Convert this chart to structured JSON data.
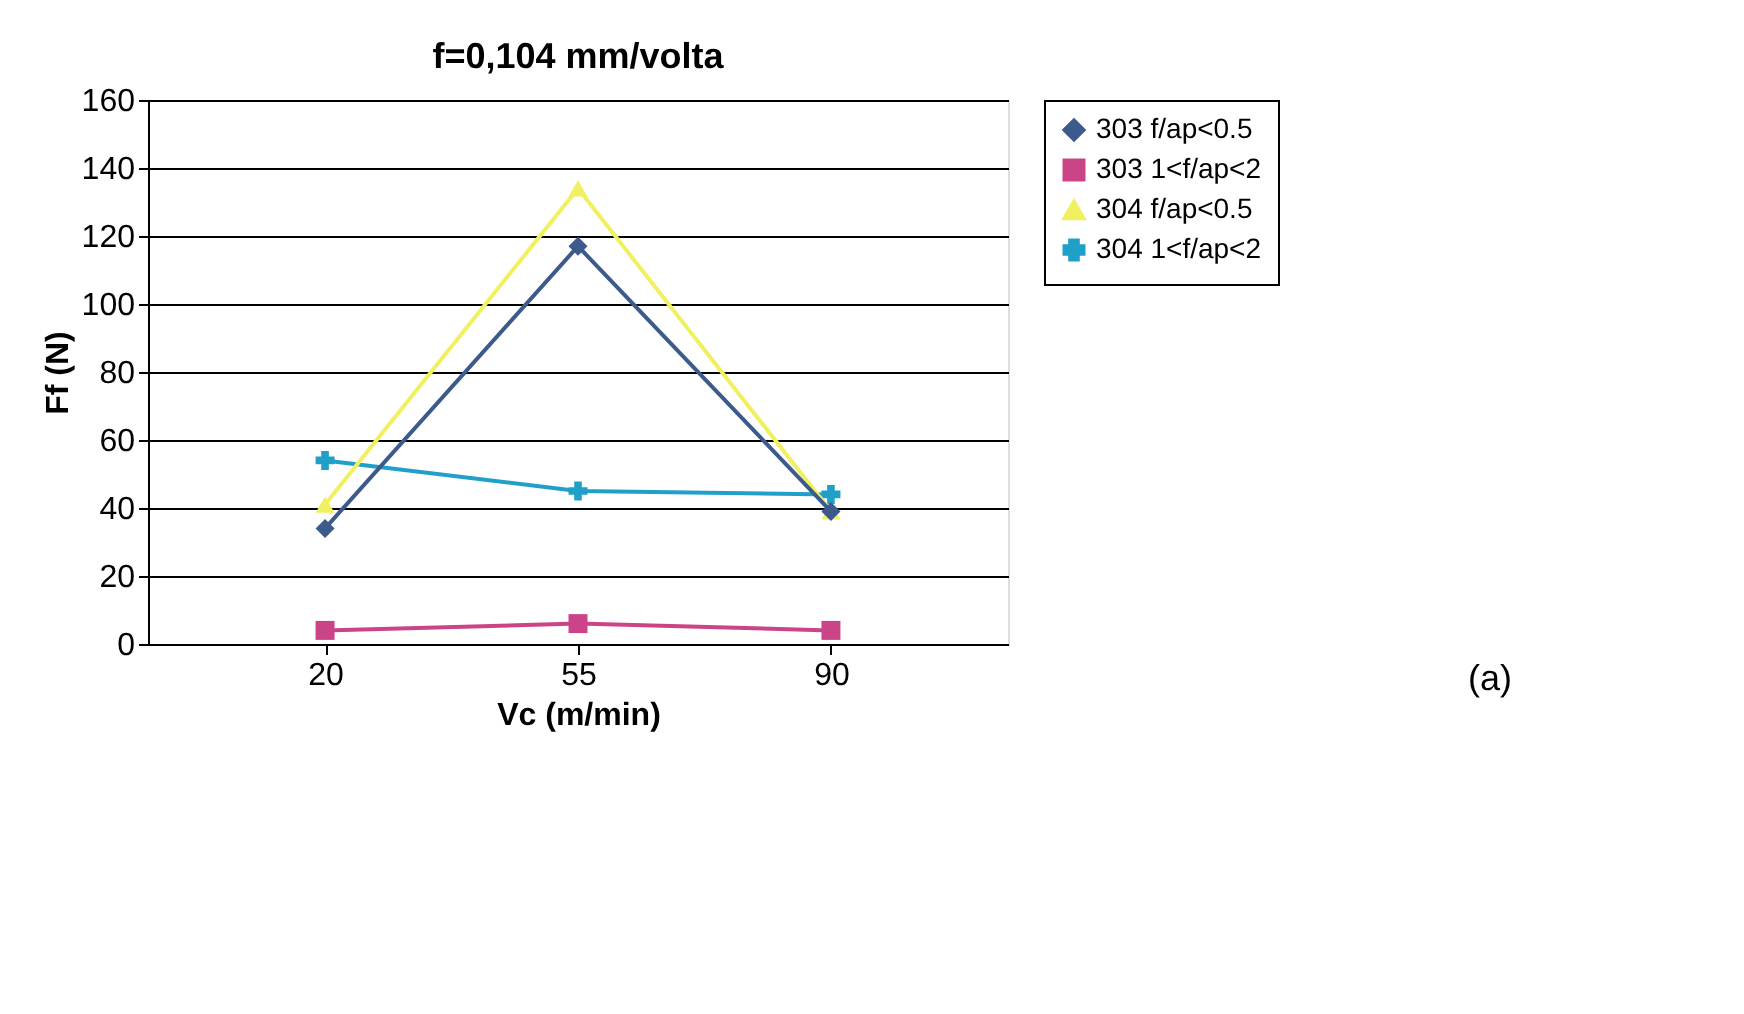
{
  "chart_data": {
    "type": "line",
    "title": "f=0,104 mm/volta",
    "xlabel": "Vc (m/min)",
    "ylabel": "Ff (N)",
    "categories": [
      "20",
      "55",
      "90"
    ],
    "series": [
      {
        "name": "303 f/ap<0.5",
        "color": "#3c5a8c",
        "marker": "diamond",
        "values": [
          34,
          117,
          39
        ]
      },
      {
        "name": "303 1<f/ap<2",
        "color": "#cc4488",
        "marker": "square",
        "values": [
          4,
          6,
          4
        ]
      },
      {
        "name": "304 f/ap<0.5",
        "color": "#f0f060",
        "marker": "triangle",
        "values": [
          41,
          134,
          39
        ]
      },
      {
        "name": "304 1<f/ap<2",
        "color": "#20a0c8",
        "marker": "cross",
        "values": [
          54,
          45,
          44
        ]
      }
    ],
    "ylim": [
      0,
      160
    ],
    "yticks": [
      0,
      20,
      40,
      60,
      80,
      100,
      120,
      140,
      160
    ],
    "grid": "y",
    "legend": "right",
    "annotations": [
      "(a)"
    ]
  }
}
